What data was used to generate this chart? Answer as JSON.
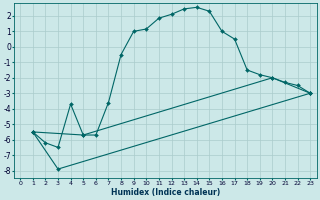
{
  "xlabel": "Humidex (Indice chaleur)",
  "bg_color": "#cce8e8",
  "grid_color": "#aacccc",
  "line_color": "#006666",
  "xlim": [
    -0.5,
    23.5
  ],
  "ylim": [
    -8.5,
    2.8
  ],
  "xticks": [
    0,
    1,
    2,
    3,
    4,
    5,
    6,
    7,
    8,
    9,
    10,
    11,
    12,
    13,
    14,
    15,
    16,
    17,
    18,
    19,
    20,
    21,
    22,
    23
  ],
  "yticks": [
    -8,
    -7,
    -6,
    -5,
    -4,
    -3,
    -2,
    -1,
    0,
    1,
    2
  ],
  "line1_x": [
    1,
    2,
    3,
    4,
    5,
    6,
    7,
    8,
    9,
    10,
    11,
    12,
    13,
    14,
    15,
    16,
    17,
    18,
    19,
    20,
    21,
    22,
    23
  ],
  "line1_y": [
    -5.5,
    -6.2,
    -6.5,
    -3.7,
    -5.7,
    -5.7,
    -3.6,
    -0.5,
    1.0,
    1.15,
    1.85,
    2.1,
    2.45,
    2.55,
    2.3,
    1.0,
    0.5,
    -1.5,
    -1.8,
    -2.0,
    -2.3,
    -2.5,
    -3.0
  ],
  "line2_x": [
    1,
    5,
    20,
    23
  ],
  "line2_y": [
    -5.5,
    -5.7,
    -2.0,
    -3.0
  ],
  "line3_x": [
    1,
    3,
    23
  ],
  "line3_y": [
    -5.5,
    -7.9,
    -3.0
  ]
}
